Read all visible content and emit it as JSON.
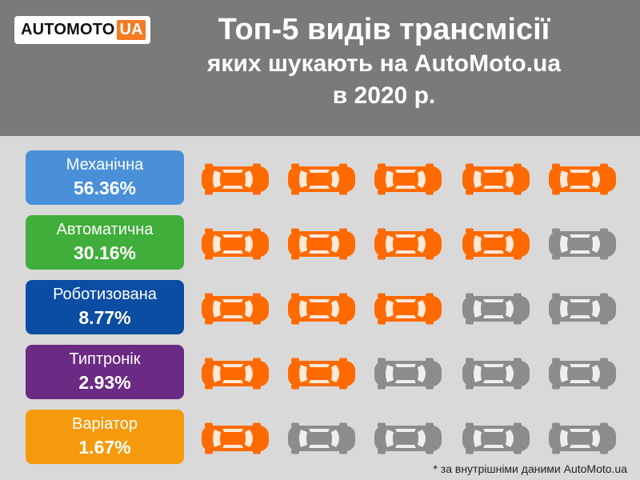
{
  "logo": {
    "brand": "AUTOMOTO",
    "tld": "UA"
  },
  "title": {
    "line1": "Топ-5 видів трансмісії",
    "line2": "яких шукають на AutoMoto.ua",
    "line3": "в 2020 р."
  },
  "footnote": "* за внутрішніми даними AutoMoto.ua",
  "colors": {
    "header": "#7a7a7a",
    "background": "#d9d9d9",
    "car_active": "#ff6a00",
    "car_inactive": "#8c8c8c",
    "brand_accent": "#f47b20"
  },
  "chart_data": {
    "type": "bar",
    "categories": [
      "Механічна",
      "Автоматична",
      "Роботизована",
      "Типтронік",
      "Варіатор"
    ],
    "values": [
      56.36,
      30.16,
      8.77,
      2.93,
      1.67
    ],
    "value_labels": [
      "56.36%",
      "30.16%",
      "8.77%",
      "2.93%",
      "1.67%"
    ],
    "icons_filled": [
      5,
      4,
      3,
      2,
      1
    ],
    "icons_total": 5,
    "category_colors": [
      "#4a90d9",
      "#3fae3a",
      "#0b4da2",
      "#6b2a84",
      "#f59a0c"
    ]
  }
}
